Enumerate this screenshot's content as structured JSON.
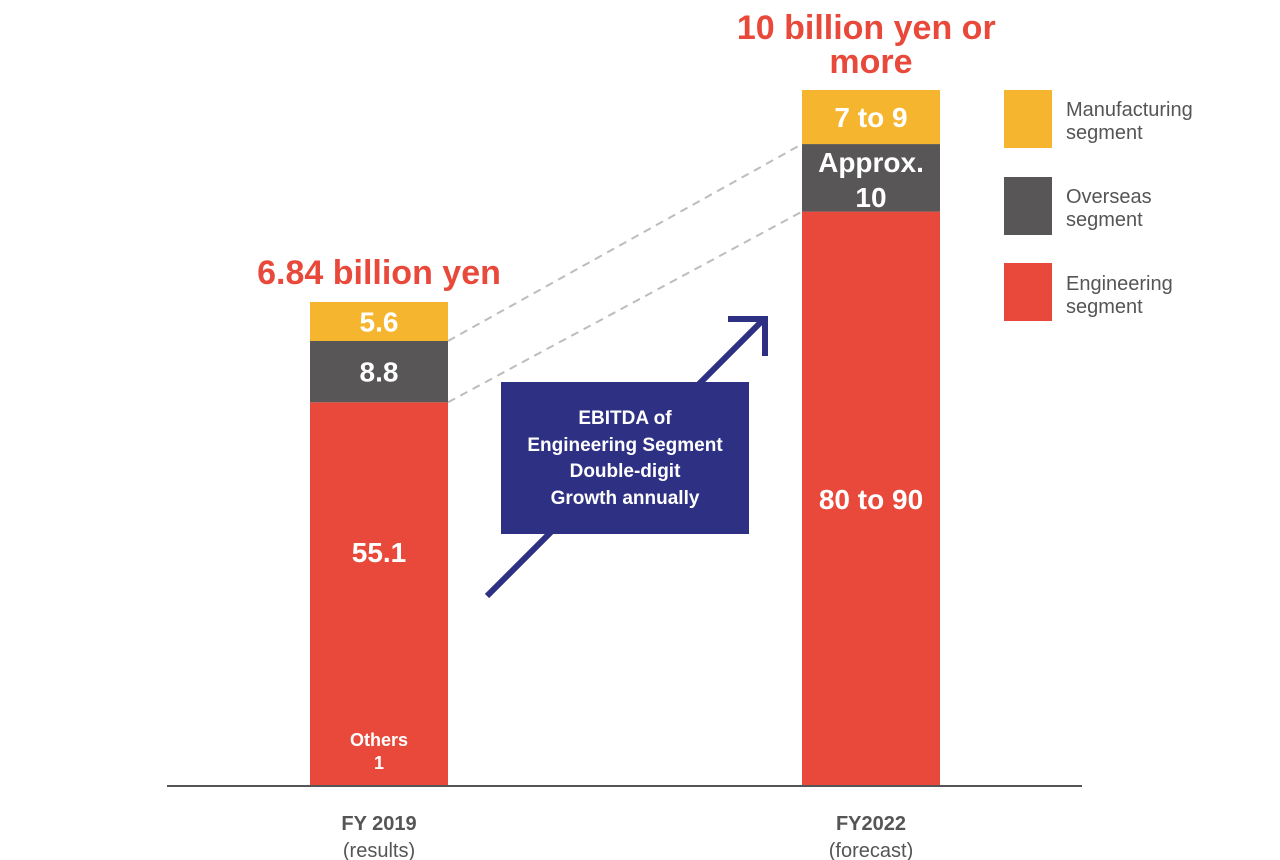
{
  "chart_data": {
    "type": "bar",
    "stacked": true,
    "categories": [
      "FY 2019",
      "FY2022"
    ],
    "category_sublabels": [
      "(results)",
      "(forecast)"
    ],
    "totals": [
      "6.84 billion yen",
      "10 billion yen or more"
    ],
    "series": [
      {
        "name": "Engineering segment",
        "color": "#e8493a",
        "values": [
          55.1,
          85
        ],
        "labels": [
          "55.1",
          "80 to 90"
        ]
      },
      {
        "name": "Overseas segment",
        "color": "#585656",
        "values": [
          8.8,
          10
        ],
        "labels": [
          "8.8",
          "Approx. 10"
        ]
      },
      {
        "name": "Manufacturing segment",
        "color": "#f6b52e",
        "values": [
          5.6,
          8
        ],
        "labels": [
          "5.6",
          "7 to 9"
        ]
      }
    ],
    "others_label": [
      "Others",
      "1"
    ],
    "callout": [
      "EBITDA of",
      "Engineering Segment",
      "Double-digit",
      "Growth annually"
    ],
    "colors": {
      "callout_bg": "#2e3183",
      "total_text": "#e8493a",
      "axis": "#555555",
      "connector": "#bdbdbd"
    }
  }
}
